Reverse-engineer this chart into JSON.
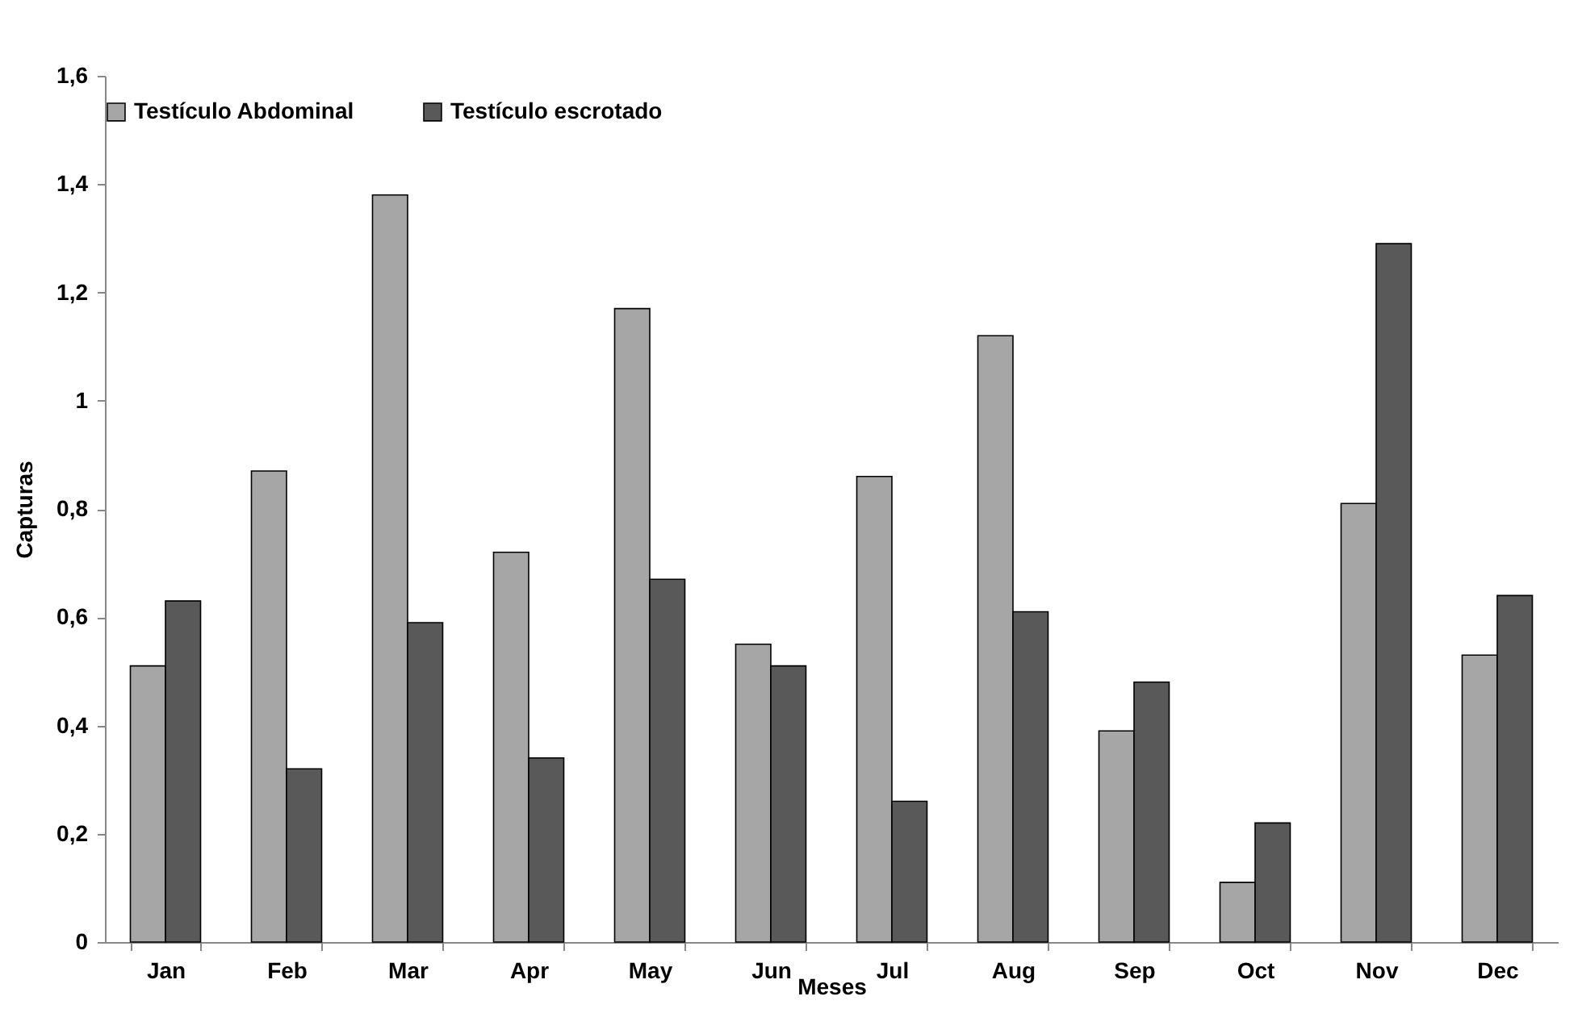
{
  "chart_data": {
    "type": "bar",
    "xlabel": "Meses",
    "ylabel": "Capturas",
    "categories": [
      "Jan",
      "Feb",
      "Mar",
      "Apr",
      "May",
      "Jun",
      "Jul",
      "Aug",
      "Sep",
      "Oct",
      "Nov",
      "Dec"
    ],
    "series": [
      {
        "name": "Testículo Abdominal",
        "color": "#a6a6a6",
        "values": [
          0.51,
          0.87,
          1.38,
          0.72,
          1.17,
          0.55,
          0.86,
          1.12,
          0.39,
          0.11,
          0.81,
          0.53
        ]
      },
      {
        "name": "Testículo escrotado",
        "color": "#595959",
        "values": [
          0.63,
          0.32,
          0.59,
          0.34,
          0.67,
          0.51,
          0.26,
          0.61,
          0.48,
          0.22,
          1.29,
          0.64
        ]
      }
    ],
    "ylim": [
      0,
      1.6
    ],
    "yticks": [
      0,
      {
        "value": 0.2,
        "label": "0,2"
      },
      {
        "value": 0.4,
        "label": "0,4"
      },
      {
        "value": 0.6,
        "label": "0,6"
      },
      {
        "value": 0.8,
        "label": "0,8"
      },
      1,
      {
        "value": 1.2,
        "label": "1,2"
      },
      {
        "value": 1.4,
        "label": "1,4"
      },
      {
        "value": 1.6,
        "label": "1,6"
      }
    ],
    "grid": false,
    "legend": "top"
  }
}
